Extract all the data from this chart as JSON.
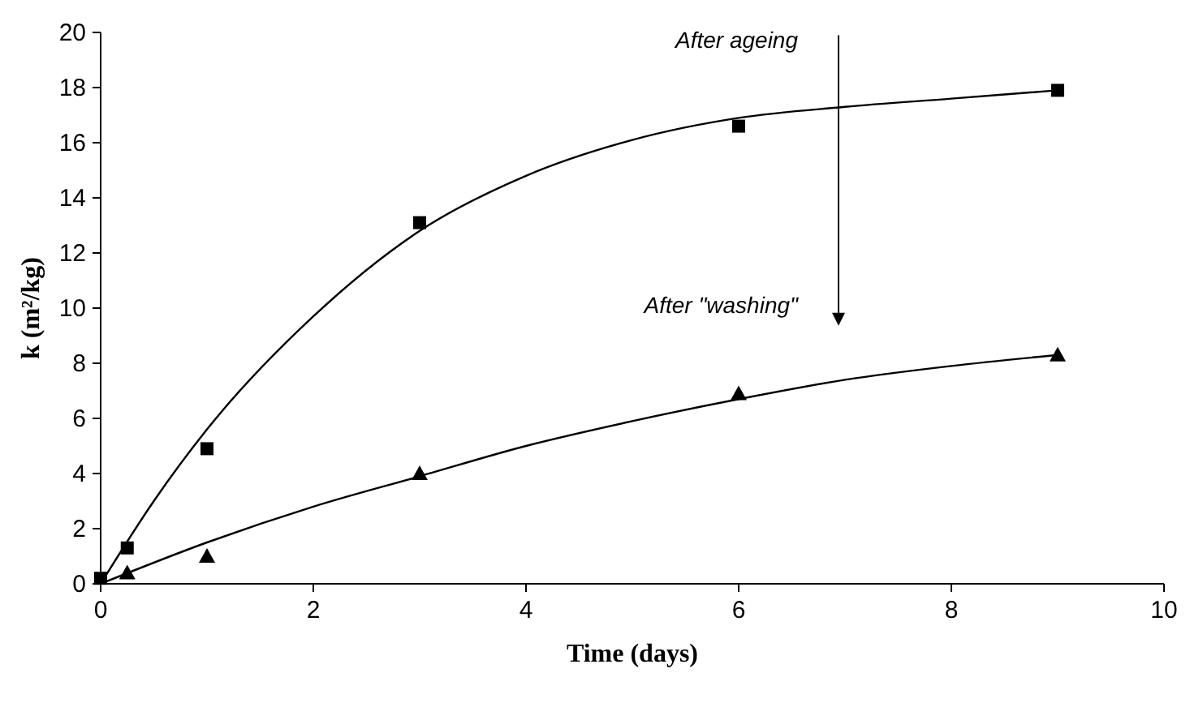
{
  "chart_data": {
    "type": "scatter",
    "xlabel": "Time (days)",
    "ylabel": "k (m²/kg)",
    "xlim": [
      0,
      10
    ],
    "xticks": [
      0,
      2,
      4,
      6,
      8,
      10
    ],
    "ylim": [
      0,
      20
    ],
    "yticks": [
      0,
      2,
      4,
      6,
      8,
      10,
      12,
      14,
      16,
      18,
      20
    ],
    "grid": false,
    "series": [
      {
        "marker": "square",
        "color": "#000000",
        "x": [
          0,
          0.25,
          1,
          3,
          6,
          9
        ],
        "values": [
          0.2,
          1.3,
          4.9,
          13.1,
          16.6,
          17.9
        ]
      },
      {
        "marker": "triangle",
        "color": "#000000",
        "x": [
          0.25,
          1,
          3,
          6,
          9
        ],
        "values": [
          0.4,
          1.0,
          4.0,
          6.9,
          8.3
        ]
      },
      {
        "type": "line",
        "name": "After ageing",
        "marker": "none",
        "line_style": "solid",
        "color": "#000000",
        "x": [
          0,
          0.5,
          1,
          2,
          3,
          4,
          5,
          6,
          7,
          8,
          9
        ],
        "values": [
          0,
          3,
          5.6,
          9.7,
          12.8,
          14.8,
          16.1,
          16.9,
          17.3,
          17.6,
          17.9
        ]
      },
      {
        "type": "line",
        "name": "After \"washing\"",
        "marker": "none",
        "line_style": "solid",
        "color": "#000000",
        "x": [
          0,
          1,
          2,
          3,
          4,
          5,
          6,
          7,
          8,
          9
        ],
        "values": [
          0,
          1.5,
          2.8,
          3.9,
          5.0,
          5.9,
          6.7,
          7.4,
          7.9,
          8.3
        ]
      }
    ]
  }
}
